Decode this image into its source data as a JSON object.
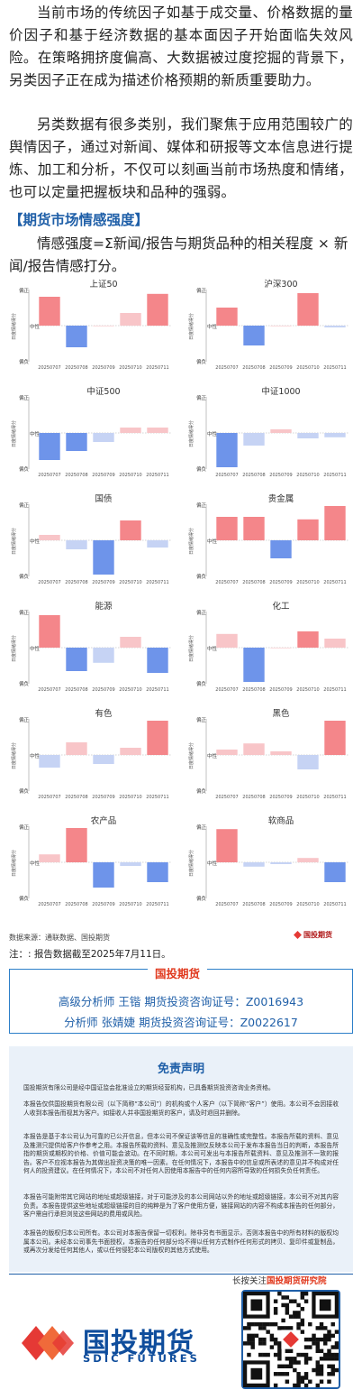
{
  "article": {
    "para1": "当前市场的传统因子如基于成交量、价格数据的量价因子和基于经济数据的基本面因子开始面临失效风险。在策略拥挤度偏高、大数据被过度挖掘的背景下，另类因子正在成为描述价格预期的新质重要助力。",
    "para2": "另类数据有很多类别，我们聚焦于应用范围较广的舆情因子，通过对新闻、媒体和研报等文本信息进行提炼、加工和分析，不仅可以刻画当前市场热度和情绪，也可以定量把握板块和品种的强弱。",
    "section_title": "【期货市场情感强度】",
    "formula": "情感强度=Σ新闻/报告与期货品种的相关程度 × 新闻/报告情感打分。"
  },
  "chart_common": {
    "y_top": "偏正",
    "y_mid": "中性",
    "y_bottom": "偏负",
    "y_axis_label": "日度情绪得分",
    "dates": [
      "20250707",
      "20250708",
      "20250709",
      "20250710",
      "20250711"
    ],
    "colors": {
      "pos_strong": "#f4868a",
      "pos_light": "#f8c5c8",
      "neg_strong": "#6e94ea",
      "neg_light": "#c6d3f4"
    }
  },
  "chart_data": [
    {
      "type": "bar",
      "title": "上证50",
      "categories": [
        "20250707",
        "20250708",
        "20250709",
        "20250710",
        "20250711"
      ],
      "values": [
        0.8,
        -0.6,
        0,
        0.35,
        0.88
      ],
      "ylim": [
        -1,
        1
      ]
    },
    {
      "type": "bar",
      "title": "沪深300",
      "categories": [
        "20250707",
        "20250708",
        "20250709",
        "20250710",
        "20250711"
      ],
      "values": [
        0.5,
        -0.55,
        0,
        0.9,
        -0.05
      ],
      "ylim": [
        -1,
        1
      ]
    },
    {
      "type": "bar",
      "title": "中证500",
      "categories": [
        "20250707",
        "20250708",
        "20250709",
        "20250710",
        "20250711"
      ],
      "values": [
        -0.75,
        -0.5,
        -0.25,
        0.15,
        0.15
      ],
      "ylim": [
        -1,
        1
      ]
    },
    {
      "type": "bar",
      "title": "中证1000",
      "categories": [
        "20250707",
        "20250708",
        "20250709",
        "20250710",
        "20250711"
      ],
      "values": [
        -0.95,
        -0.35,
        0.1,
        -0.15,
        -0.12
      ],
      "ylim": [
        -1,
        1
      ]
    },
    {
      "type": "bar",
      "title": "国债",
      "categories": [
        "20250707",
        "20250708",
        "20250709",
        "20250710",
        "20250711"
      ],
      "values": [
        0.15,
        -0.25,
        -0.95,
        0.55,
        -0.2
      ],
      "ylim": [
        -1,
        1
      ]
    },
    {
      "type": "bar",
      "title": "贵金属",
      "categories": [
        "20250707",
        "20250708",
        "20250709",
        "20250710",
        "20250711"
      ],
      "values": [
        0.65,
        0.65,
        -0.5,
        0.58,
        0.95
      ],
      "ylim": [
        -1,
        1
      ]
    },
    {
      "type": "bar",
      "title": "能源",
      "categories": [
        "20250707",
        "20250708",
        "20250709",
        "20250710",
        "20250711"
      ],
      "values": [
        0.9,
        -0.65,
        -0.42,
        0.3,
        -0.7
      ],
      "ylim": [
        -1,
        1
      ]
    },
    {
      "type": "bar",
      "title": "化工",
      "categories": [
        "20250707",
        "20250708",
        "20250709",
        "20250710",
        "20250711"
      ],
      "values": [
        0.38,
        -0.95,
        0,
        0.45,
        0.25
      ],
      "ylim": [
        -1,
        1
      ]
    },
    {
      "type": "bar",
      "title": "有色",
      "categories": [
        "20250707",
        "20250708",
        "20250709",
        "20250710",
        "20250711"
      ],
      "values": [
        -0.35,
        0.35,
        -0.25,
        0.2,
        0.95
      ],
      "ylim": [
        -1,
        1
      ]
    },
    {
      "type": "bar",
      "title": "黑色",
      "categories": [
        "20250707",
        "20250708",
        "20250709",
        "20250710",
        "20250711"
      ],
      "values": [
        0.15,
        0.32,
        0.1,
        -0.4,
        0.95
      ],
      "ylim": [
        -1,
        1
      ]
    },
    {
      "type": "bar",
      "title": "农产品",
      "categories": [
        "20250707",
        "20250708",
        "20250709",
        "20250710",
        "20250711"
      ],
      "values": [
        0.22,
        0.95,
        -0.7,
        -0.1,
        -0.55
      ],
      "ylim": [
        -1,
        1
      ]
    },
    {
      "type": "bar",
      "title": "软商品",
      "categories": [
        "20250707",
        "20250708",
        "20250709",
        "20250710",
        "20250711"
      ],
      "values": [
        0.92,
        -0.12,
        -0.05,
        0.12,
        -0.55
      ],
      "ylim": [
        -1,
        1
      ]
    }
  ],
  "source": {
    "text": "数据来源：通联数据、国投期货",
    "logo_text": "国投期货"
  },
  "note": "注：: 报告数据截至2025年7月11日。",
  "analyst": {
    "tab": "国投期货",
    "line1": "高级分析师  王锴  期货投资咨询证号：Z0016943",
    "line2": "分析师  张婧婕  期货投资咨询证号：Z0022617"
  },
  "disclaimer": {
    "title": "免责声明",
    "p1": "国投期货有限公司是经中国证监会批准设立的期货经营机构，已具备期货投资咨询业务资格。",
    "p2": "本报告仅供国投期货有限公司（以下简称“本公司”）的机构或个人客户（以下简称“客户”）使用。本公司不会因接收人收到本报告而视其为客户。如接收人并非国投期货的客户，请及时退回并删除。",
    "p3": "本报告是基于本公司认为可靠的已公开信息，但本公司不保证该等信息的准确性或完整性。本报告所载的资料、意见及推测只提供给客户作参考之用。本报告所载的资料、意见及推测仅反映本公司于发布本报告当日的判断，本报告所指的期货或期权的价格、价值可能会波动。在不同时期，本公司可发出与本报告所载资料、意见及推测不一致的报告。客户不应视本报告为其做出投资决策的唯一因素。在任何情况下，本报告中的信息或所表述的意见并不构成对任何人的投资建议。在任何情况下，本公司不对任何人因使用本报告中的任何内容所导致的任何损失负任何责任。",
    "p4": "本报告可能附带其它网站的地址或超级链接，对于可能涉及的本公司网站以外的地址或超级链接，本公司不对其内容负责。本报告提供这些地址或超级链接的目的纯粹是为了客户使用方便，链接网站的内容不构成本报告的任何部分，客户需自行承担浏览这些网站的费用或风险。",
    "p5": "本报告的版权归本公司所有。本公司对本报告保留一切权利。除非另有书面显示，否则本报告中的所有材料的版权均属本公司。未经本公司事先书面授权，本报告的任何部分均不得以任何方式制作任何形式的拷贝、复印件或复制品，或再次分发给任何其他人，或以任何侵犯本公司版权的其他方式使用。"
  },
  "footer": {
    "brand_cn": "国投期货",
    "brand_en": "SDIC FUTURES",
    "follow_prefix": "长按关注",
    "follow_name": "国投期货研究院"
  }
}
